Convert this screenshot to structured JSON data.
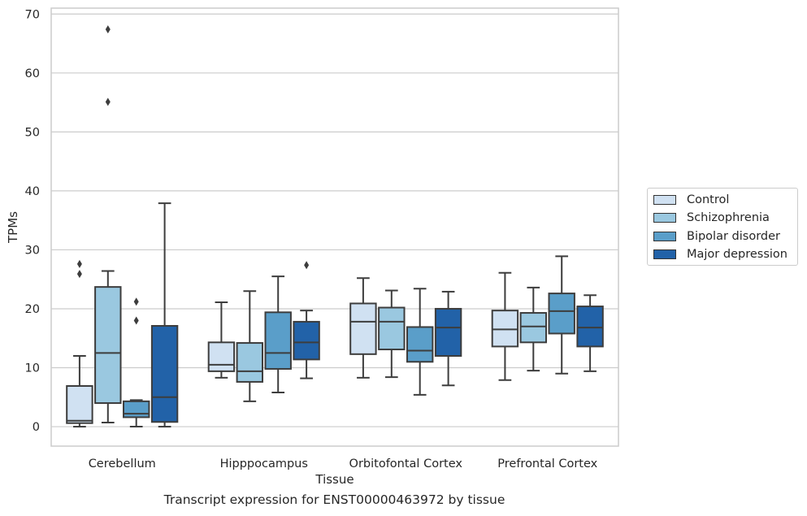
{
  "caption": "Transcript expression for ENST00000463972 by tissue",
  "chart_data": {
    "type": "box",
    "title": "",
    "xlabel": "Tissue",
    "ylabel": "TPMs",
    "ylim": [
      -3.3,
      71
    ],
    "yticks": [
      0,
      10,
      20,
      30,
      40,
      50,
      60,
      70
    ],
    "grid": "horizontal",
    "legend_position": "right",
    "categories": [
      "Cerebellum",
      "Hipppocampus",
      "Orbitofontal Cortex",
      "Prefrontal Cortex"
    ],
    "series": [
      {
        "name": "Control",
        "color": "#d0e1f2",
        "boxes": [
          {
            "whisker_low": 0,
            "q1": 0.6,
            "median": 1.0,
            "q3": 6.9,
            "whisker_high": 12.0,
            "outliers": [
              25.9,
              27.6
            ]
          },
          {
            "whisker_low": 8.3,
            "q1": 9.4,
            "median": 10.5,
            "q3": 14.3,
            "whisker_high": 21.1,
            "outliers": []
          },
          {
            "whisker_low": 8.3,
            "q1": 12.3,
            "median": 17.8,
            "q3": 20.9,
            "whisker_high": 25.2,
            "outliers": []
          },
          {
            "whisker_low": 7.9,
            "q1": 13.6,
            "median": 16.5,
            "q3": 19.7,
            "whisker_high": 26.1,
            "outliers": []
          }
        ]
      },
      {
        "name": "Schizophrenia",
        "color": "#9ac8e0",
        "boxes": [
          {
            "whisker_low": 0.7,
            "q1": 4.0,
            "median": 12.5,
            "q3": 23.7,
            "whisker_high": 26.4,
            "outliers": [
              55.1,
              67.4
            ]
          },
          {
            "whisker_low": 4.3,
            "q1": 7.6,
            "median": 9.4,
            "q3": 14.2,
            "whisker_high": 23.0,
            "outliers": []
          },
          {
            "whisker_low": 8.4,
            "q1": 13.1,
            "median": 17.8,
            "q3": 20.2,
            "whisker_high": 23.1,
            "outliers": []
          },
          {
            "whisker_low": 9.5,
            "q1": 14.3,
            "median": 17.0,
            "q3": 19.3,
            "whisker_high": 23.6,
            "outliers": []
          }
        ]
      },
      {
        "name": "Bipolar disorder",
        "color": "#5a9ec9",
        "boxes": [
          {
            "whisker_low": 0,
            "q1": 1.6,
            "median": 2.2,
            "q3": 4.3,
            "whisker_high": 4.5,
            "outliers": [
              18.0,
              21.2
            ]
          },
          {
            "whisker_low": 5.8,
            "q1": 9.8,
            "median": 12.5,
            "q3": 19.4,
            "whisker_high": 25.5,
            "outliers": []
          },
          {
            "whisker_low": 5.4,
            "q1": 11.0,
            "median": 12.9,
            "q3": 16.9,
            "whisker_high": 23.4,
            "outliers": []
          },
          {
            "whisker_low": 9.0,
            "q1": 15.8,
            "median": 19.6,
            "q3": 22.6,
            "whisker_high": 28.9,
            "outliers": []
          }
        ]
      },
      {
        "name": "Major depression",
        "color": "#2262a8",
        "boxes": [
          {
            "whisker_low": 0,
            "q1": 0.8,
            "median": 5.0,
            "q3": 17.1,
            "whisker_high": 37.9,
            "outliers": []
          },
          {
            "whisker_low": 8.2,
            "q1": 11.4,
            "median": 14.3,
            "q3": 17.8,
            "whisker_high": 19.7,
            "outliers": [
              27.4
            ]
          },
          {
            "whisker_low": 7.0,
            "q1": 12.0,
            "median": 16.8,
            "q3": 20.0,
            "whisker_high": 22.9,
            "outliers": []
          },
          {
            "whisker_low": 9.4,
            "q1": 13.6,
            "median": 16.8,
            "q3": 20.4,
            "whisker_high": 22.3,
            "outliers": []
          }
        ]
      }
    ]
  }
}
